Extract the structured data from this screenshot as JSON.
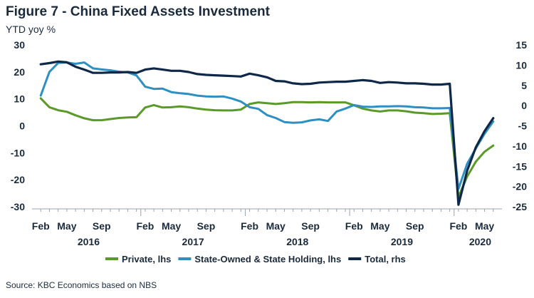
{
  "title": "Figure 7 - China Fixed Assets Investment",
  "subtitle": "YTD yoy %",
  "source": "Source: KBC Economics based on NBS",
  "colors": {
    "private": "#5a9a28",
    "state": "#2f8fc2",
    "total": "#0f2847",
    "axis": "#9aa3ad"
  },
  "chart_data": {
    "type": "line",
    "x_labels": [
      {
        "label": "Feb",
        "index": 0
      },
      {
        "label": "May",
        "index": 3
      },
      {
        "label": "Sep",
        "index": 7
      },
      {
        "label": "Feb",
        "index": 12
      },
      {
        "label": "May",
        "index": 15
      },
      {
        "label": "Sep",
        "index": 19
      },
      {
        "label": "Feb",
        "index": 24
      },
      {
        "label": "May",
        "index": 27
      },
      {
        "label": "Sep",
        "index": 31
      },
      {
        "label": "Feb",
        "index": 36
      },
      {
        "label": "May",
        "index": 39
      },
      {
        "label": "Sep",
        "index": 43
      },
      {
        "label": "Feb",
        "index": 48
      },
      {
        "label": "May",
        "index": 51
      }
    ],
    "year_labels": [
      {
        "label": "2016",
        "index": 5.5
      },
      {
        "label": "2017",
        "index": 17.5
      },
      {
        "label": "2018",
        "index": 29.5
      },
      {
        "label": "2019",
        "index": 41.5
      },
      {
        "label": "2020",
        "index": 50.5
      }
    ],
    "x_range": [
      -1,
      53
    ],
    "y_left": {
      "range": [
        -30,
        30
      ],
      "ticks": [
        -30,
        -20,
        -10,
        0,
        10,
        20,
        30
      ]
    },
    "y_right": {
      "range": [
        -25,
        15
      ],
      "ticks": [
        -25,
        -20,
        -15,
        -10,
        -5,
        0,
        5,
        10,
        15
      ]
    },
    "series": [
      {
        "name": "Private, lhs",
        "key": "private",
        "axis": "left",
        "values": [
          10.2,
          6.9,
          5.8,
          5.2,
          3.9,
          2.8,
          2.1,
          2.1,
          2.5,
          2.9,
          3.1,
          3.2,
          6.8,
          7.7,
          6.8,
          6.9,
          7.2,
          6.9,
          6.4,
          6.0,
          5.8,
          5.7,
          5.7,
          6.0,
          8.1,
          8.7,
          8.4,
          8.1,
          8.4,
          8.8,
          8.8,
          8.7,
          8.8,
          8.7,
          8.7,
          8.7,
          7.6,
          6.4,
          5.7,
          5.3,
          5.7,
          5.7,
          5.4,
          4.9,
          4.7,
          4.4,
          4.5,
          4.7,
          -26.4,
          -18.8,
          -13.3,
          -9.6,
          -7.3
        ],
        "start_index": 0
      },
      {
        "name": "State-Owned & State Holding, lhs",
        "key": "state",
        "axis": "left",
        "values": [
          11.2,
          20.0,
          23.3,
          23.5,
          23.0,
          23.5,
          21.3,
          20.9,
          20.6,
          20.1,
          19.8,
          18.7,
          14.5,
          13.7,
          13.8,
          12.5,
          12.1,
          11.8,
          11.2,
          10.9,
          10.8,
          10.9,
          10.1,
          9.0,
          6.9,
          6.3,
          4.0,
          2.9,
          1.4,
          1.1,
          1.3,
          2.0,
          2.4,
          1.8,
          5.3,
          6.4,
          7.7,
          7.1,
          7.0,
          7.2,
          7.2,
          7.3,
          7.2,
          6.9,
          6.8,
          6.5,
          6.5,
          6.6,
          -23.4,
          -14.1,
          -8.4,
          -2.9,
          1.6
        ],
        "start_index": 0
      },
      {
        "name": "Total, rhs",
        "key": "total",
        "axis": "right",
        "values": [
          10.2,
          10.5,
          10.9,
          10.7,
          9.6,
          8.9,
          8.1,
          8.1,
          8.2,
          8.2,
          8.3,
          8.1,
          8.9,
          9.2,
          8.9,
          8.6,
          8.6,
          8.3,
          7.8,
          7.6,
          7.5,
          7.4,
          7.3,
          7.2,
          7.9,
          7.5,
          7.0,
          6.1,
          6.0,
          5.5,
          5.3,
          5.4,
          5.7,
          5.8,
          5.9,
          5.9,
          6.1,
          6.3,
          6.1,
          5.6,
          5.8,
          5.7,
          5.5,
          5.5,
          5.4,
          5.2,
          5.2,
          5.4,
          -24.5,
          -16.1,
          -10.3,
          -6.3,
          -3.1
        ],
        "start_index": 0
      }
    ]
  }
}
